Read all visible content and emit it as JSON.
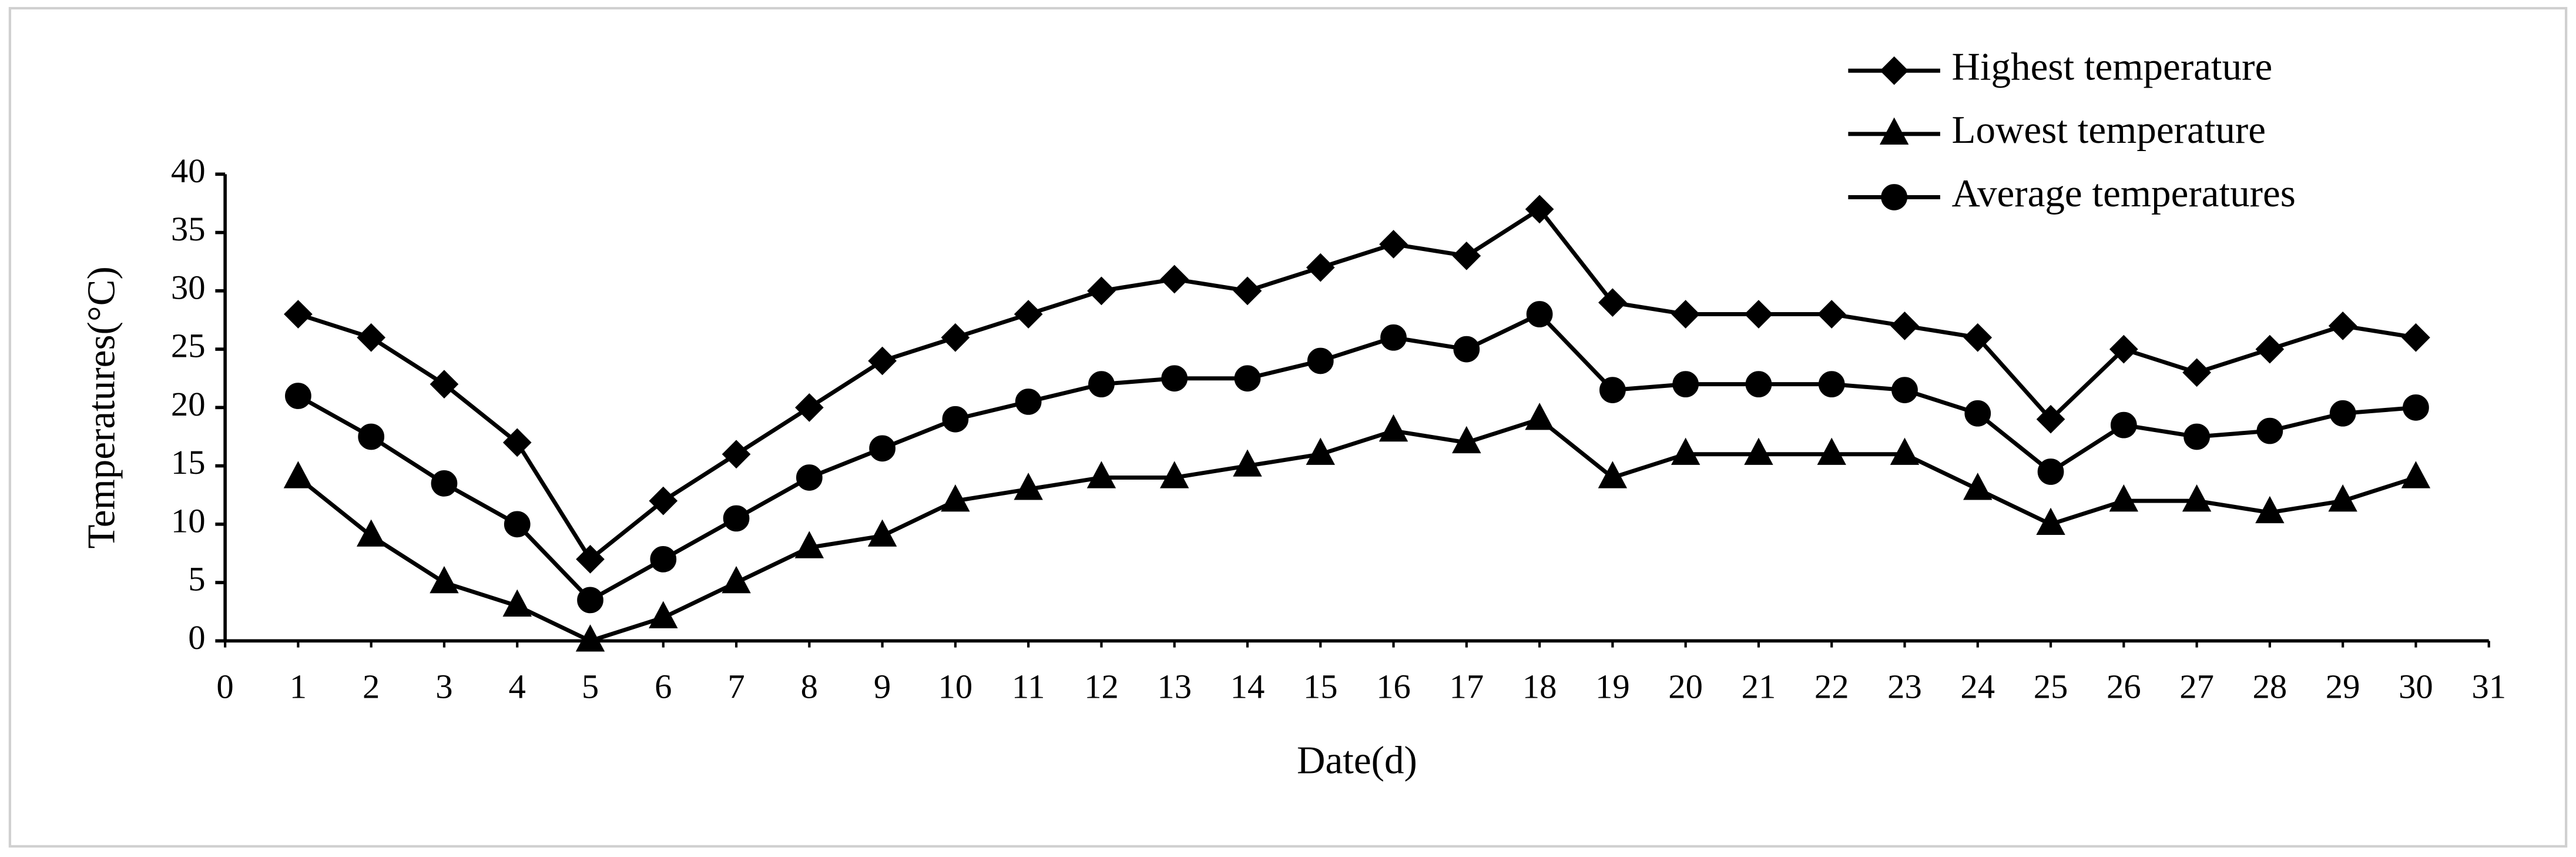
{
  "chart_data": {
    "type": "line",
    "x_label": "Date(d)",
    "y_label": "Temperatures(°C)",
    "x": [
      1,
      2,
      3,
      4,
      5,
      6,
      7,
      8,
      9,
      10,
      11,
      12,
      13,
      14,
      15,
      16,
      17,
      18,
      19,
      20,
      21,
      22,
      23,
      24,
      25,
      26,
      27,
      28,
      29,
      30
    ],
    "series": [
      {
        "name": "Highest temperature",
        "color": "#000000",
        "marker": "diamond",
        "values": [
          28,
          26,
          22,
          17,
          7,
          12,
          16,
          20,
          24,
          26,
          28,
          30,
          31,
          30,
          32,
          34,
          33,
          37,
          29,
          28,
          28,
          28,
          27,
          26,
          19,
          25,
          23,
          25,
          27,
          26
        ]
      },
      {
        "name": "Lowest temperature",
        "color": "#000000",
        "marker": "triangle",
        "values": [
          14,
          9,
          5,
          3,
          0,
          2,
          5,
          8,
          9,
          12,
          13,
          14,
          14,
          15,
          16,
          18,
          17,
          19,
          14,
          16,
          16,
          16,
          16,
          13,
          10,
          12,
          12,
          11,
          12,
          14
        ]
      },
      {
        "name": "Average temperatures",
        "color": "#000000",
        "marker": "circle",
        "values": [
          21,
          17.5,
          13.5,
          10,
          3.5,
          7,
          10.5,
          14,
          16.5,
          19,
          20.5,
          22,
          22.5,
          22.5,
          24,
          26,
          25,
          28,
          21.5,
          22,
          22,
          22,
          21.5,
          19.5,
          14.5,
          18.5,
          17.5,
          18,
          19.5,
          20
        ]
      }
    ],
    "xlim": [
      0,
      31
    ],
    "xticks": [
      0,
      1,
      2,
      3,
      4,
      5,
      6,
      7,
      8,
      9,
      10,
      11,
      12,
      13,
      14,
      15,
      16,
      17,
      18,
      19,
      20,
      21,
      22,
      23,
      24,
      25,
      26,
      27,
      28,
      29,
      30,
      31
    ],
    "ylim": [
      0,
      40
    ],
    "yticks": [
      0,
      5,
      10,
      15,
      20,
      25,
      30,
      35,
      40
    ],
    "grid": false,
    "legend": "upper right"
  }
}
